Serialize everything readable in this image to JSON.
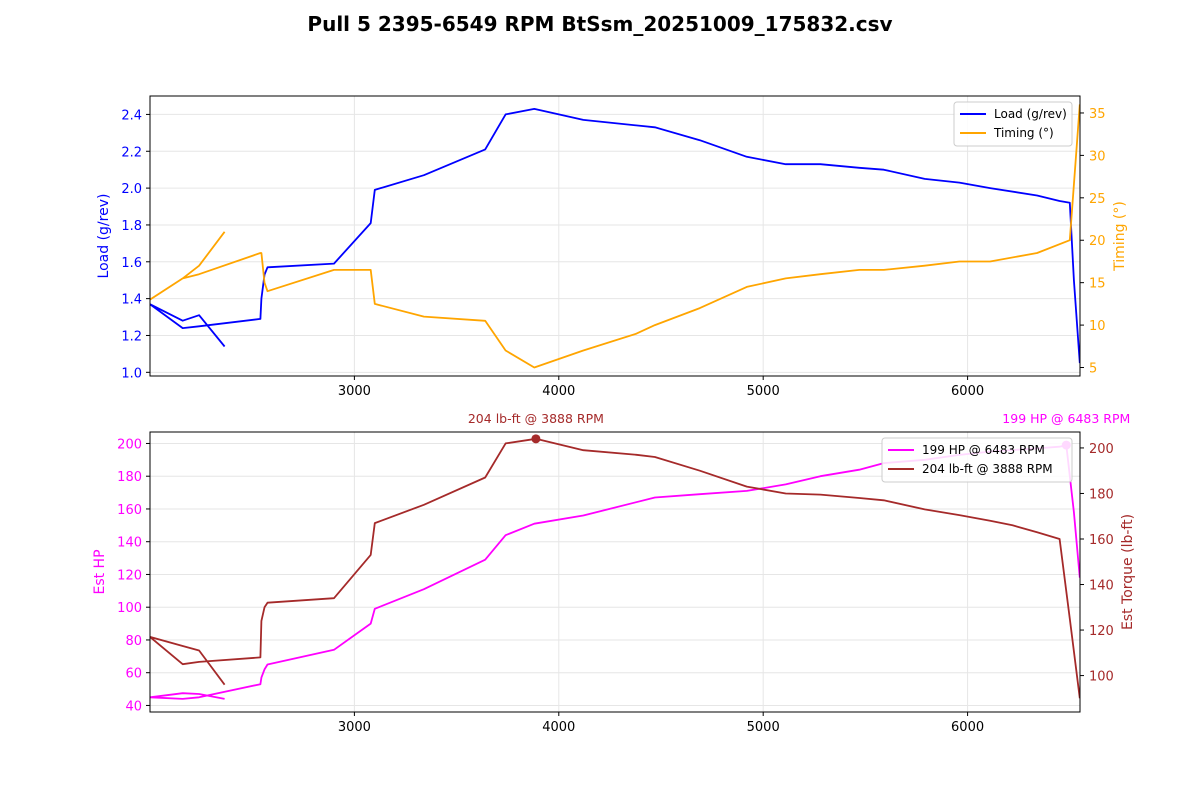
{
  "title": "Pull 5 2395-6549 RPM BtSsm_20251009_175832.csv",
  "colors": {
    "load": "#0000ff",
    "timing": "#ffa500",
    "hp": "#ff00ff",
    "torque": "#a52a2a"
  },
  "chart_data": [
    {
      "type": "line",
      "grid": true,
      "legend_position": "top-right",
      "xlim": [
        2000,
        6550
      ],
      "xticks": [
        3000,
        4000,
        5000,
        6000
      ],
      "ylabel": "Load (g/rev)",
      "ylim": [
        0.98,
        2.5
      ],
      "yticks": [
        1.0,
        1.2,
        1.4,
        1.6,
        1.8,
        2.0,
        2.2,
        2.4
      ],
      "y2label": "Timing (°)",
      "y2lim": [
        4,
        37
      ],
      "y2ticks": [
        5,
        10,
        15,
        20,
        25,
        30,
        35
      ],
      "series": [
        {
          "name": "Load (g/rev)",
          "axis": "left",
          "color": "#0000ff",
          "x": [
            2365,
            2240,
            2160,
            2000,
            2160,
            2240,
            2540,
            2545,
            2560,
            2575,
            2900,
            3080,
            3100,
            3340,
            3640,
            3740,
            3880,
            4120,
            4470,
            4690,
            4920,
            5110,
            5280,
            5470,
            5590,
            5790,
            5960,
            6110,
            6340,
            6450,
            6500,
            6520,
            6549
          ],
          "y": [
            1.14,
            1.31,
            1.28,
            1.37,
            1.24,
            1.25,
            1.29,
            1.4,
            1.53,
            1.57,
            1.59,
            1.81,
            1.99,
            2.07,
            2.21,
            2.4,
            2.43,
            2.37,
            2.33,
            2.26,
            2.17,
            2.13,
            2.13,
            2.11,
            2.1,
            2.05,
            2.03,
            2.0,
            1.96,
            1.93,
            1.92,
            1.5,
            1.05
          ]
        },
        {
          "name": "Timing (°)",
          "axis": "right",
          "color": "#ffa500",
          "x": [
            2365,
            2240,
            2160,
            2000,
            2160,
            2240,
            2540,
            2545,
            2560,
            2575,
            2900,
            3080,
            3100,
            3340,
            3640,
            3740,
            3880,
            4120,
            4380,
            4470,
            4690,
            4920,
            5110,
            5280,
            5470,
            5590,
            5790,
            5960,
            6110,
            6340,
            6500,
            6549
          ],
          "y": [
            21.0,
            17.0,
            15.5,
            13.0,
            15.5,
            16.0,
            18.5,
            18.5,
            15.0,
            14.0,
            16.5,
            16.5,
            12.5,
            11.0,
            10.5,
            7.0,
            5.0,
            7.0,
            9.0,
            10.0,
            12.0,
            14.5,
            15.5,
            16.0,
            16.5,
            16.5,
            17.0,
            17.5,
            17.5,
            18.5,
            20.0,
            36.0
          ]
        }
      ]
    },
    {
      "type": "line",
      "grid": true,
      "legend_position": "top-right",
      "xlim": [
        2000,
        6550
      ],
      "xticks": [
        3000,
        4000,
        5000,
        6000
      ],
      "ylabel": "Est HP",
      "ylim": [
        36,
        207
      ],
      "yticks": [
        40,
        60,
        80,
        100,
        120,
        140,
        160,
        180,
        200
      ],
      "y2label": "Est Torque (lb-ft)",
      "y2lim": [
        84,
        207
      ],
      "y2ticks": [
        100,
        120,
        140,
        160,
        180,
        200
      ],
      "series": [
        {
          "name": "199 HP @ 6483 RPM",
          "axis": "left",
          "color": "#ff00ff",
          "x": [
            2365,
            2240,
            2160,
            2000,
            2160,
            2240,
            2540,
            2545,
            2560,
            2575,
            2900,
            3080,
            3100,
            3340,
            3640,
            3740,
            3880,
            4120,
            4470,
            4690,
            4920,
            5110,
            5280,
            5470,
            5590,
            5790,
            5960,
            6110,
            6340,
            6450,
            6483,
            6520,
            6549
          ],
          "y": [
            44,
            47,
            47.5,
            45,
            44,
            45,
            53,
            57,
            62,
            65,
            74,
            90,
            99,
            111,
            129,
            144,
            151,
            156,
            167,
            169,
            171,
            175,
            180,
            184,
            188,
            190,
            193,
            195,
            197,
            198,
            199,
            158,
            118
          ]
        },
        {
          "name": "204 lb-ft @ 3888 RPM",
          "axis": "right",
          "color": "#a52a2a",
          "x": [
            2365,
            2240,
            2160,
            2000,
            2160,
            2240,
            2540,
            2545,
            2560,
            2575,
            2900,
            3080,
            3100,
            3340,
            3640,
            3740,
            3888,
            4120,
            4380,
            4470,
            4690,
            4920,
            5110,
            5280,
            5470,
            5590,
            5790,
            5960,
            6110,
            6220,
            6340,
            6450,
            6500,
            6549
          ],
          "y": [
            96,
            111,
            113,
            117,
            105,
            106,
            108,
            124,
            130,
            132,
            134,
            153,
            167,
            175,
            187,
            202,
            204,
            199,
            197,
            196,
            190,
            183,
            180,
            179.5,
            178,
            177,
            173,
            170.5,
            168,
            166,
            163,
            160,
            125,
            90
          ]
        }
      ],
      "annotations": [
        {
          "text": "204 lb-ft @ 3888 RPM",
          "x": 3888,
          "y": 204,
          "axis": "right",
          "color": "#a52a2a"
        },
        {
          "text": "199 HP @ 6483 RPM",
          "x": 6483,
          "y": 199,
          "axis": "left",
          "color": "#ff00ff"
        }
      ]
    }
  ]
}
